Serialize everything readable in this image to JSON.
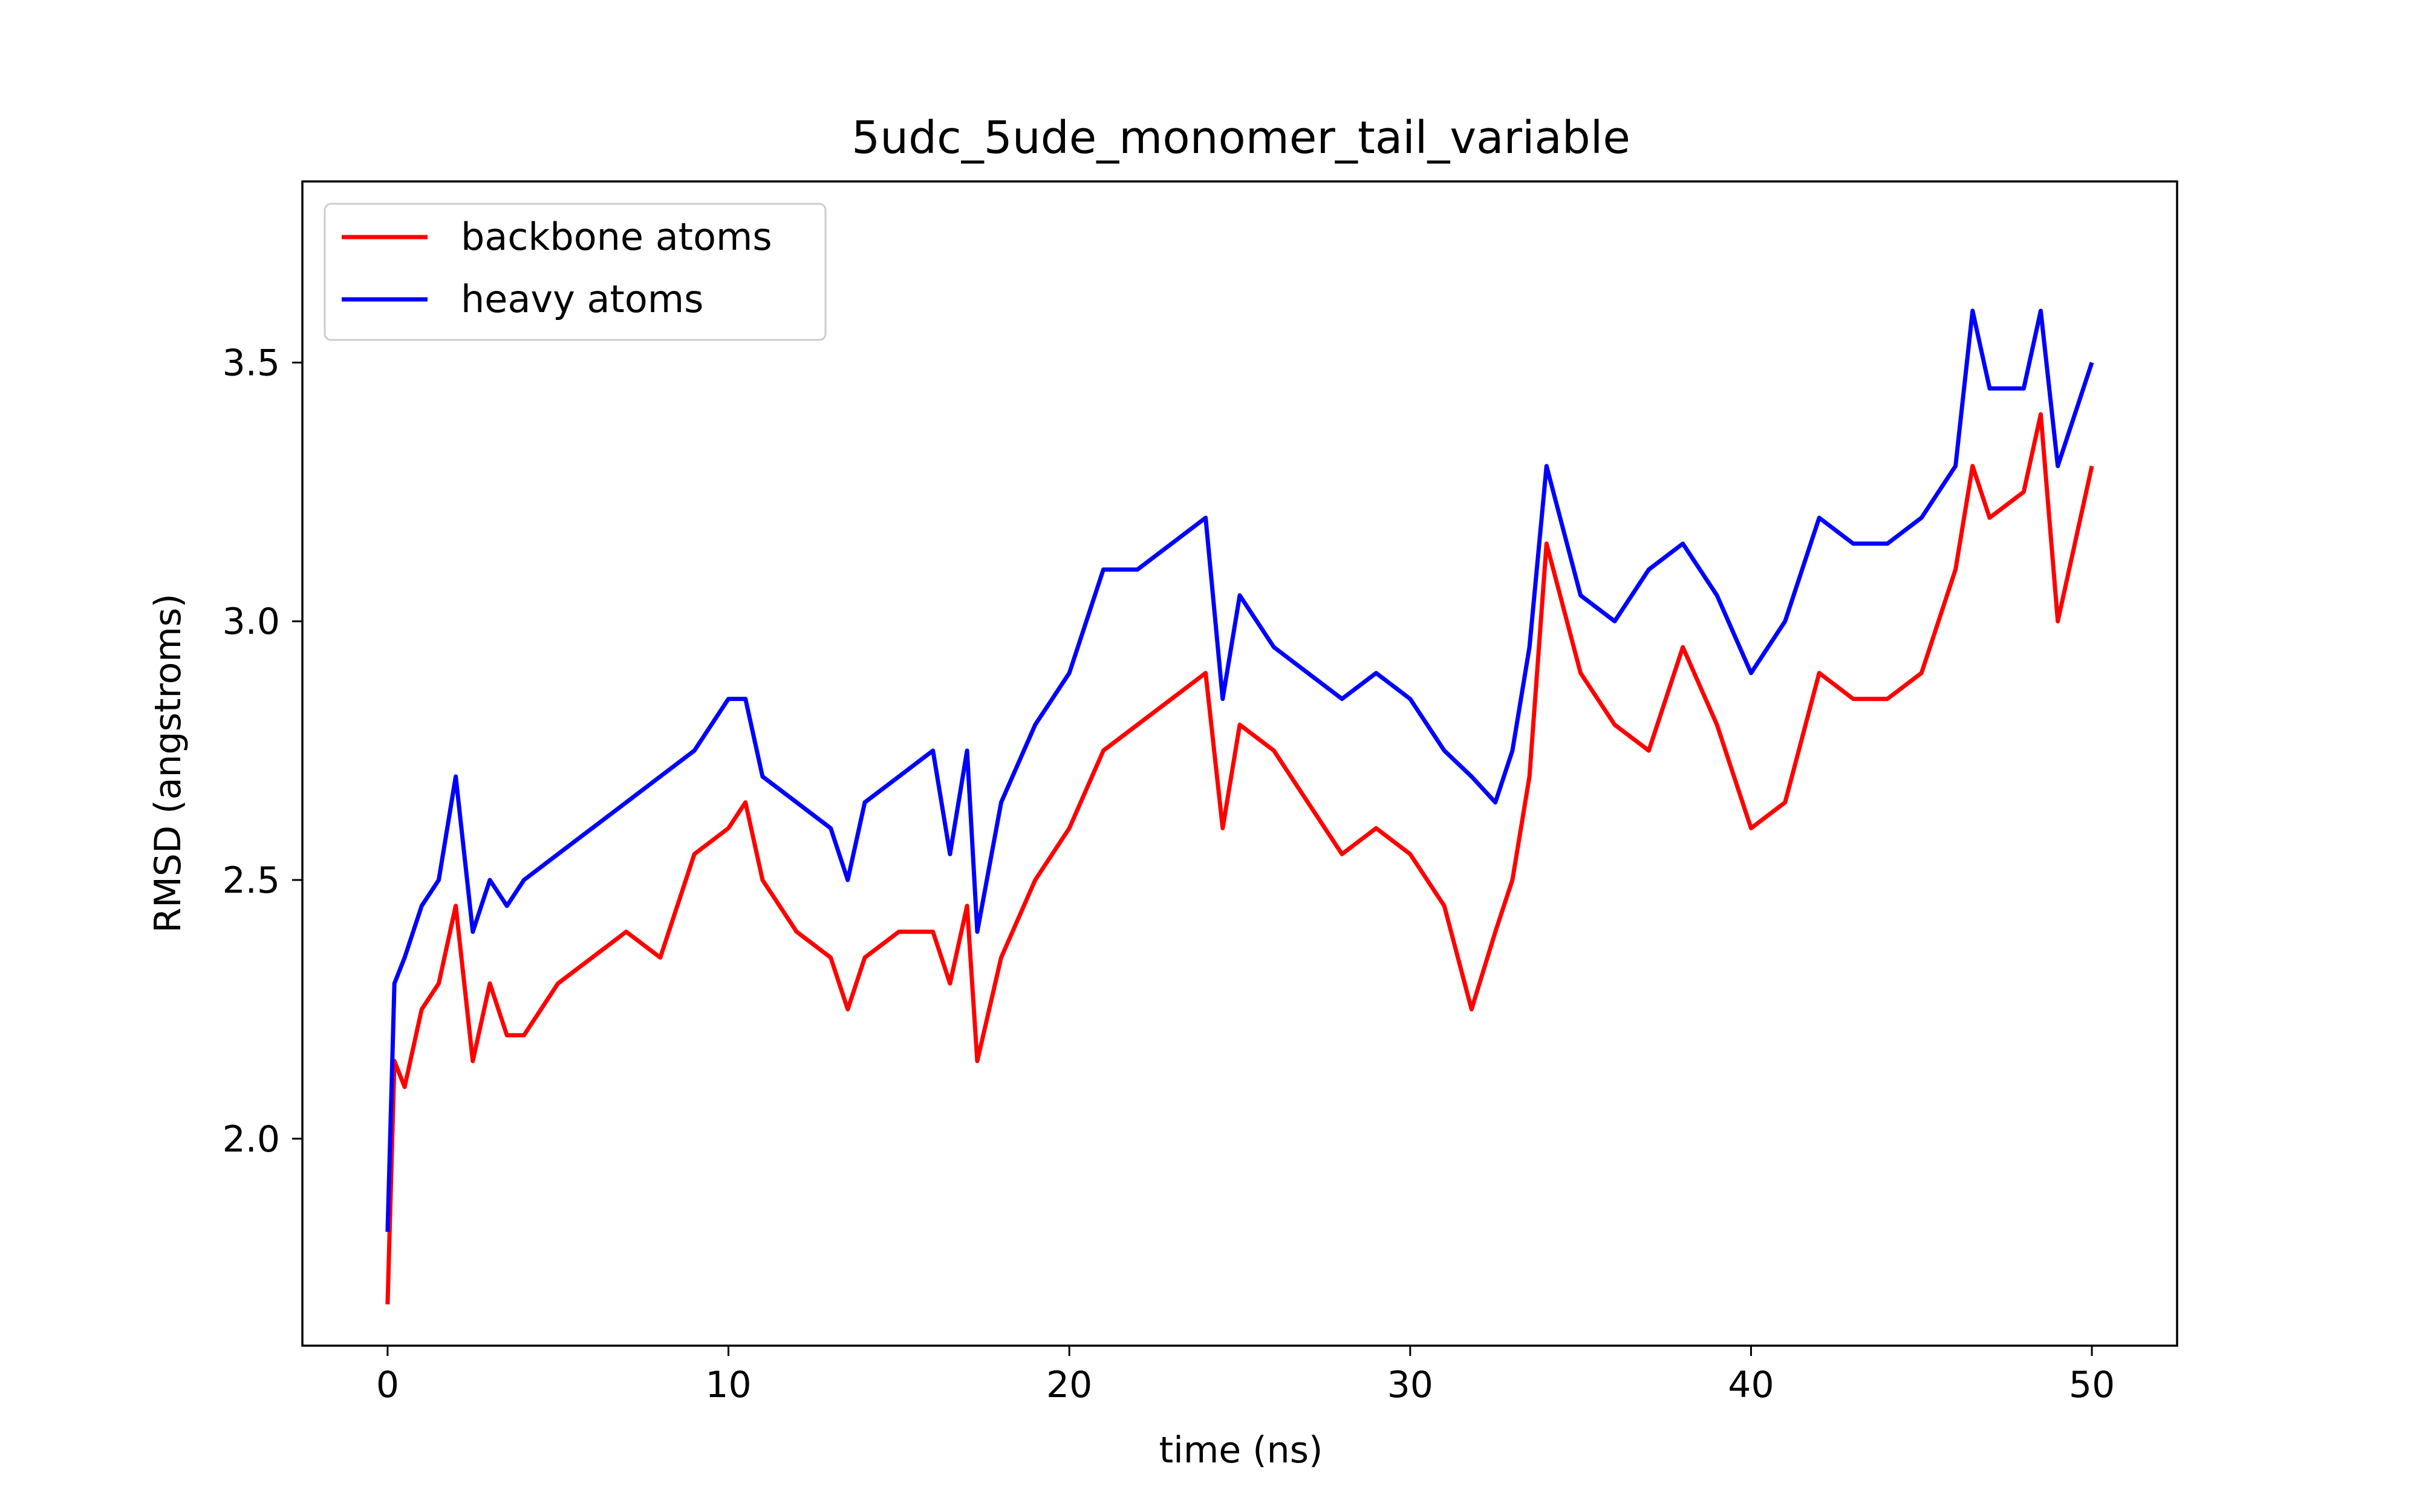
{
  "chart_data": {
    "type": "line",
    "title": "5udc_5ude_monomer_tail_variable",
    "xlabel": "time (ns)",
    "ylabel": "RMSD (angstroms)",
    "xlim": [
      -2.5,
      52.5
    ],
    "ylim": [
      1.6,
      3.85
    ],
    "xticks": [
      0,
      10,
      20,
      30,
      40,
      50
    ],
    "xtick_labels": [
      "0",
      "10",
      "20",
      "30",
      "40",
      "50"
    ],
    "yticks": [
      2.0,
      2.5,
      3.0,
      3.5
    ],
    "ytick_labels": [
      "2.0",
      "2.5",
      "3.0",
      "3.5"
    ],
    "grid": false,
    "legend_position": "top-left",
    "series": [
      {
        "name": "backbone atoms",
        "color": "#ff0000",
        "x": [
          0,
          0.2,
          0.5,
          1,
          1.5,
          2,
          2.5,
          3,
          3.5,
          4,
          5,
          6,
          7,
          8,
          9,
          10,
          10.5,
          11,
          12,
          13,
          13.5,
          14,
          15,
          16,
          16.5,
          17,
          17.3,
          18,
          19,
          20,
          21,
          22,
          23,
          24,
          24.5,
          25,
          26,
          27,
          28,
          29,
          30,
          31,
          31.8,
          32.5,
          33,
          33.5,
          34,
          35,
          36,
          37,
          38,
          39,
          40,
          41,
          42,
          43,
          44,
          45,
          46,
          46.5,
          47,
          48,
          48.5,
          49,
          50
        ],
        "y": [
          1.68,
          2.15,
          2.1,
          2.25,
          2.3,
          2.45,
          2.15,
          2.3,
          2.2,
          2.2,
          2.3,
          2.35,
          2.4,
          2.35,
          2.55,
          2.6,
          2.65,
          2.5,
          2.4,
          2.35,
          2.25,
          2.35,
          2.4,
          2.4,
          2.3,
          2.45,
          2.15,
          2.35,
          2.5,
          2.6,
          2.75,
          2.8,
          2.85,
          2.9,
          2.6,
          2.8,
          2.75,
          2.65,
          2.55,
          2.6,
          2.55,
          2.45,
          2.25,
          2.4,
          2.5,
          2.7,
          3.15,
          2.9,
          2.8,
          2.75,
          2.95,
          2.8,
          2.6,
          2.65,
          2.9,
          2.85,
          2.85,
          2.9,
          3.1,
          3.3,
          3.2,
          3.25,
          3.4,
          3.0,
          3.3
        ]
      },
      {
        "name": "heavy atoms",
        "color": "#0000ff",
        "x": [
          0,
          0.2,
          0.5,
          1,
          1.5,
          2,
          2.5,
          3,
          3.5,
          4,
          5,
          6,
          7,
          8,
          9,
          10,
          10.5,
          11,
          12,
          13,
          13.5,
          14,
          15,
          16,
          16.5,
          17,
          17.3,
          18,
          19,
          20,
          21,
          22,
          23,
          24,
          24.5,
          25,
          26,
          27,
          28,
          29,
          30,
          31,
          31.8,
          32.5,
          33,
          33.5,
          34,
          35,
          36,
          37,
          38,
          39,
          40,
          41,
          42,
          43,
          44,
          45,
          46,
          46.5,
          47,
          48,
          48.5,
          49,
          50
        ],
        "y": [
          1.82,
          2.3,
          2.35,
          2.45,
          2.5,
          2.7,
          2.4,
          2.5,
          2.45,
          2.5,
          2.55,
          2.6,
          2.65,
          2.7,
          2.75,
          2.85,
          2.85,
          2.7,
          2.65,
          2.6,
          2.5,
          2.65,
          2.7,
          2.75,
          2.55,
          2.75,
          2.4,
          2.65,
          2.8,
          2.9,
          3.1,
          3.1,
          3.15,
          3.2,
          2.85,
          3.05,
          2.95,
          2.9,
          2.85,
          2.9,
          2.85,
          2.75,
          2.7,
          2.65,
          2.75,
          2.95,
          3.3,
          3.05,
          3.0,
          3.1,
          3.15,
          3.05,
          2.9,
          3.0,
          3.2,
          3.15,
          3.15,
          3.2,
          3.3,
          3.6,
          3.45,
          3.45,
          3.6,
          3.3,
          3.5
        ]
      }
    ]
  }
}
